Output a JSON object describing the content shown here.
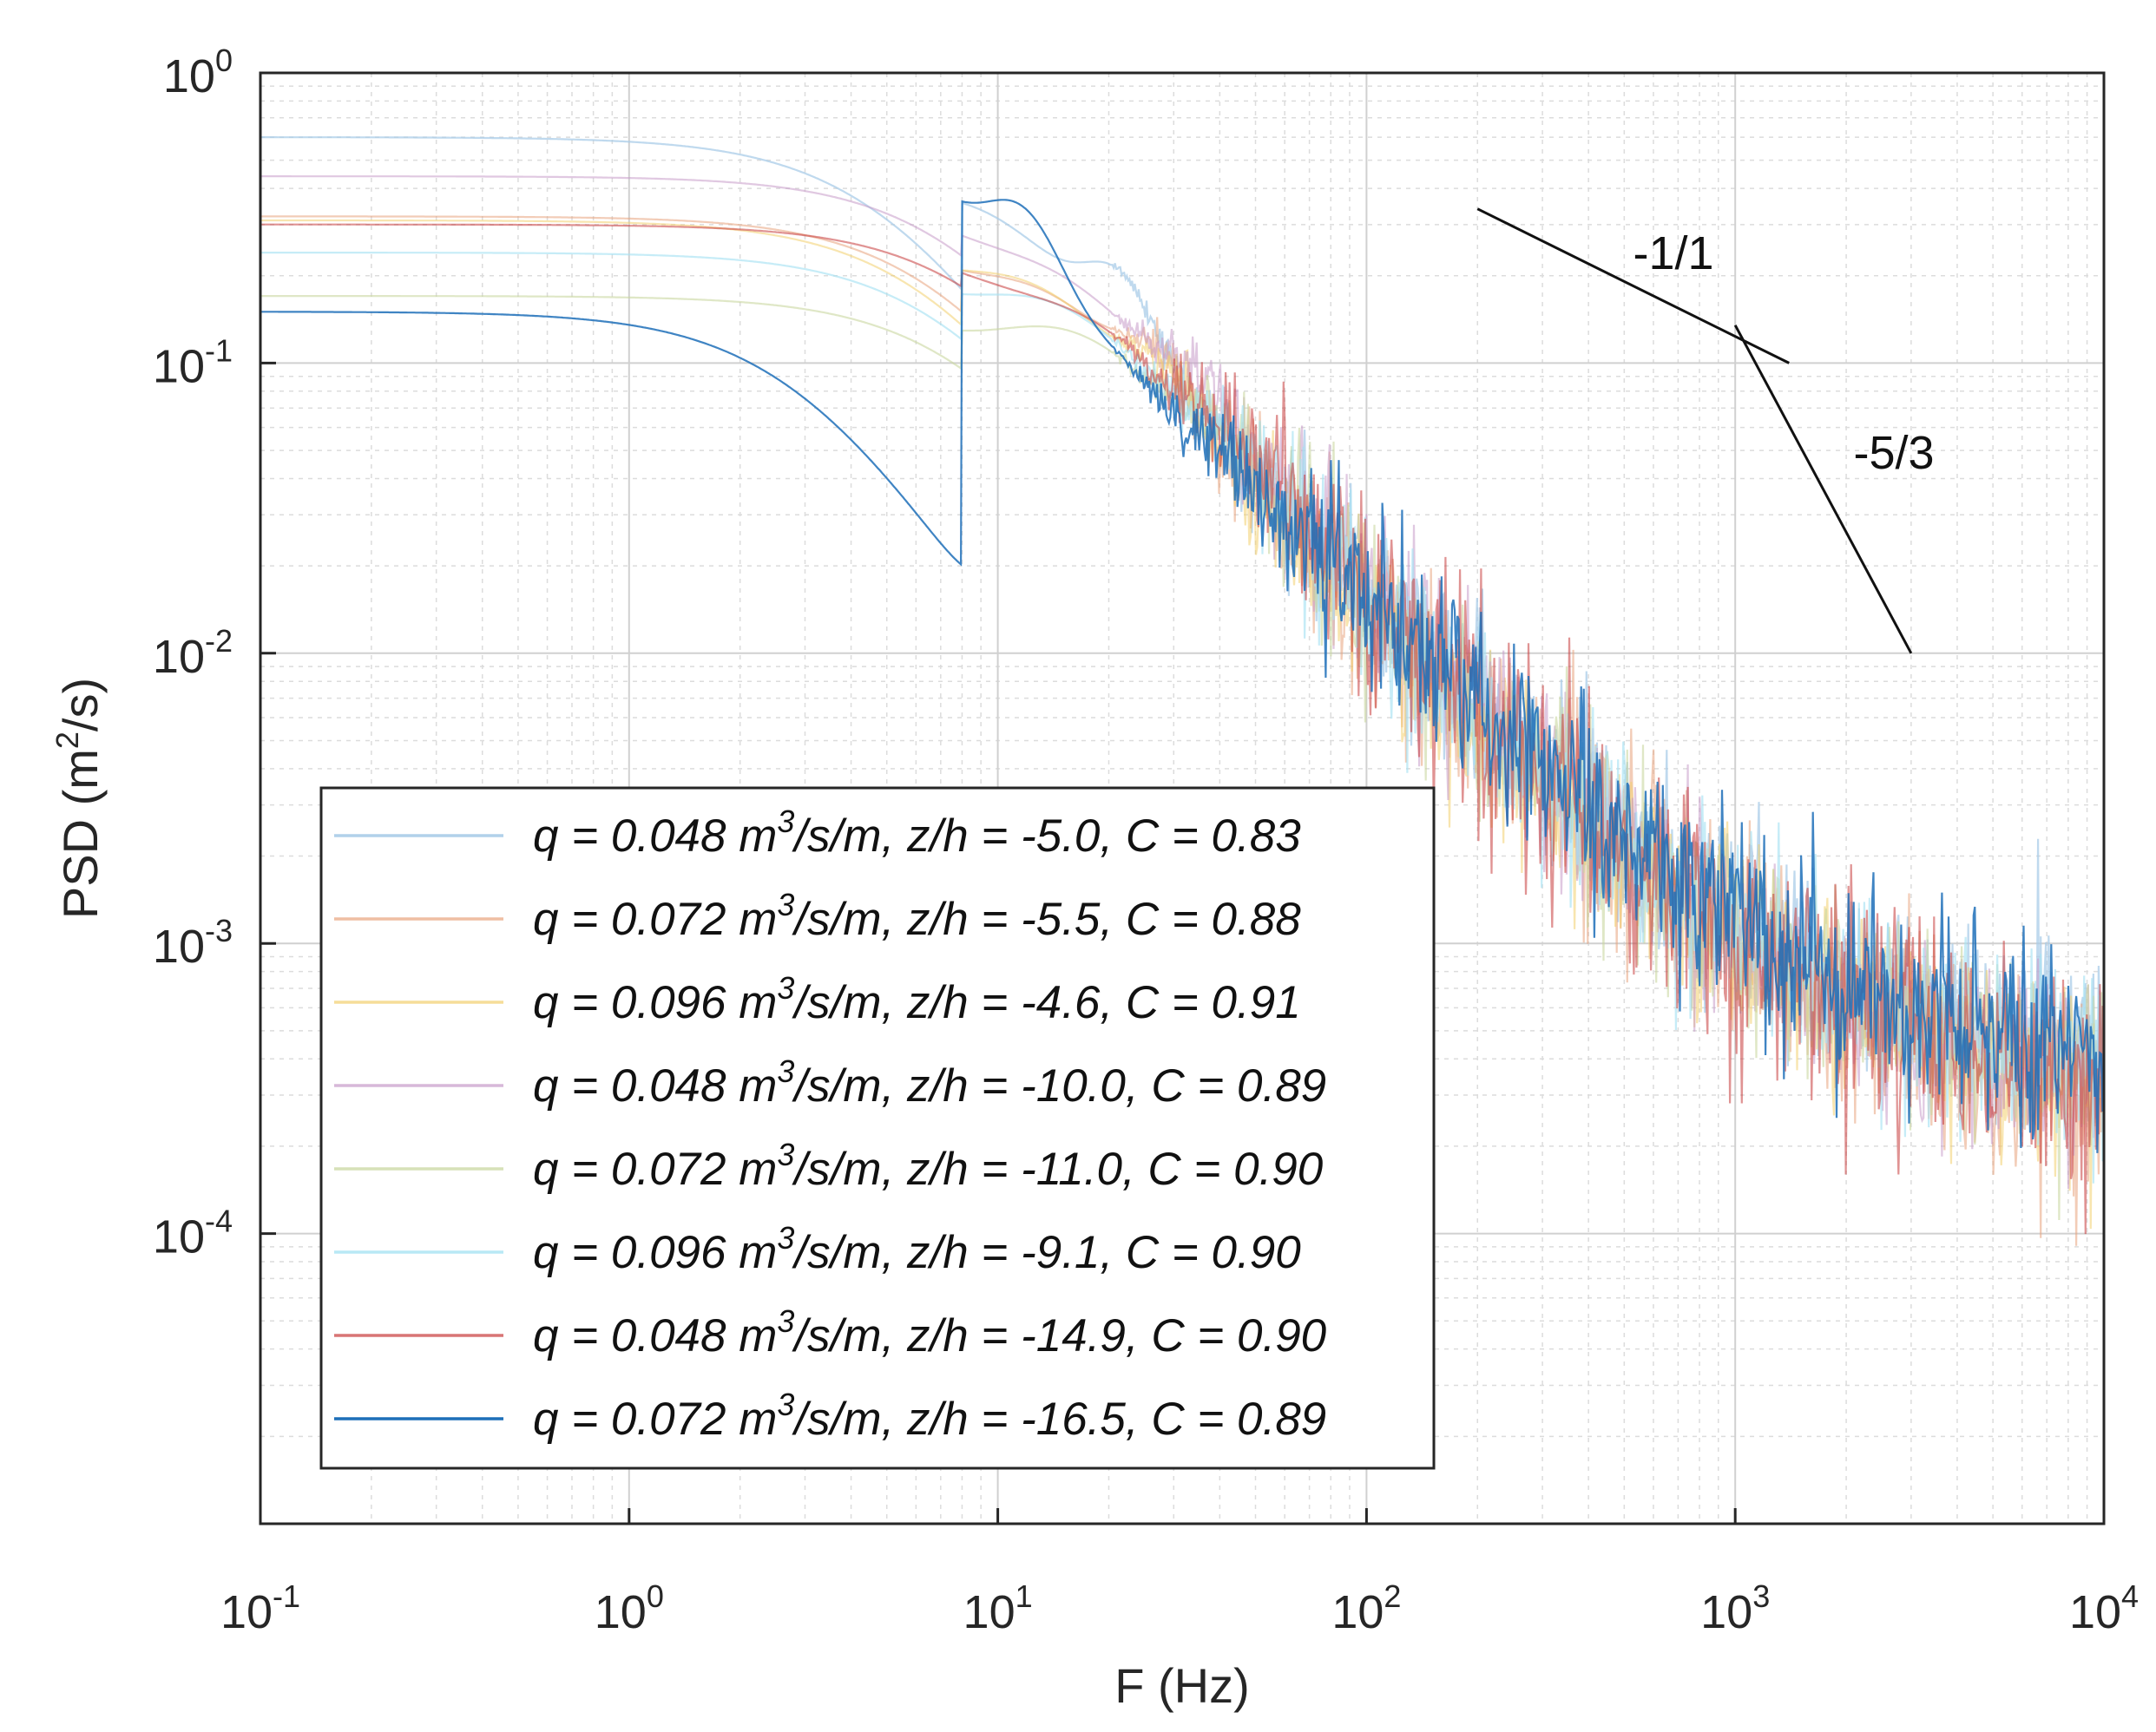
{
  "chart_data": {
    "type": "line",
    "scale": "log-log",
    "xlabel": "F (Hz)",
    "ylabel": "PSD (m²/s)",
    "ylabel_parts": {
      "pre": "PSD (m",
      "sup": "2",
      "post": "/s)"
    },
    "xlim": [
      0.1,
      10000
    ],
    "ylim": [
      1e-05,
      1
    ],
    "grid": true,
    "minor_grid": true,
    "legend_position": "lower-left",
    "x_ticks": [
      {
        "value": 0.1,
        "base": "10",
        "exp": "-1"
      },
      {
        "value": 1,
        "base": "10",
        "exp": "0"
      },
      {
        "value": 10,
        "base": "10",
        "exp": "1"
      },
      {
        "value": 100,
        "base": "10",
        "exp": "2"
      },
      {
        "value": 1000,
        "base": "10",
        "exp": "3"
      },
      {
        "value": 10000,
        "base": "10",
        "exp": "4"
      }
    ],
    "y_ticks": [
      {
        "value": 1,
        "base": "10",
        "exp": "0"
      },
      {
        "value": 0.1,
        "base": "10",
        "exp": "-1"
      },
      {
        "value": 0.01,
        "base": "10",
        "exp": "-2"
      },
      {
        "value": 0.001,
        "base": "10",
        "exp": "-3"
      },
      {
        "value": 0.0001,
        "base": "10",
        "exp": "-4"
      }
    ],
    "reference_lines": [
      {
        "label": "-1/1",
        "slope": -1,
        "points": [
          [
            200,
            0.34
          ],
          [
            1400,
            0.1
          ]
        ]
      },
      {
        "label": "-5/3",
        "slope": -1.6667,
        "points": [
          [
            1000,
            0.135
          ],
          [
            3000,
            0.01
          ]
        ]
      }
    ],
    "series": [
      {
        "name": "q = 0.048 m³/s/m, z/h = -5.0, C = 0.83",
        "q": "0.048",
        "zh": "-5.0",
        "c": "0.83",
        "color": "#a9cce8",
        "opacity": 0.75,
        "plateau": 0.6,
        "knee": 5.2,
        "hump_f": 22,
        "hump_a": 0.6,
        "noise": 0.09,
        "floor": 0.00042,
        "hf_offset": 0.34,
        "seed": 11
      },
      {
        "name": "q = 0.072 m³/s/m, z/h = -5.5, C = 0.88",
        "q": "0.072",
        "zh": "-5.5",
        "c": "0.88",
        "color": "#e8a27c",
        "opacity": 0.55,
        "plateau": 0.32,
        "knee": 7.5,
        "hump_f": 28,
        "hump_a": 0.35,
        "noise": 0.11,
        "floor": 0.00028,
        "hf_offset": 0.1,
        "seed": 23
      },
      {
        "name": "q = 0.096 m³/s/m, z/h = -4.6, C = 0.91",
        "q": "0.096",
        "zh": "-4.6",
        "c": "0.91",
        "color": "#f2cf6e",
        "opacity": 0.55,
        "plateau": 0.31,
        "knee": 7.0,
        "hump_f": 30,
        "hump_a": 0.3,
        "noise": 0.1,
        "floor": 0.0003,
        "hf_offset": 0.14,
        "seed": 37
      },
      {
        "name": "q = 0.048 m³/s/m, z/h = -10.0, C = 0.89",
        "q": "0.048",
        "zh": "-10.0",
        "c": "0.89",
        "color": "#c69ac9",
        "opacity": 0.55,
        "plateau": 0.44,
        "knee": 8.5,
        "hump_f": 35,
        "hump_a": 0.3,
        "noise": 0.1,
        "floor": 0.00033,
        "hf_offset": 0.2,
        "seed": 41
      },
      {
        "name": "q = 0.072 m³/s/m, z/h = -11.0, C = 0.90",
        "q": "0.072",
        "zh": "-11.0",
        "c": "0.90",
        "color": "#c9d7a0",
        "opacity": 0.6,
        "plateau": 0.17,
        "knee": 9.0,
        "hump_f": 40,
        "hump_a": 0.25,
        "noise": 0.1,
        "floor": 0.00034,
        "hf_offset": 0.22,
        "seed": 53
      },
      {
        "name": "q = 0.096 m³/s/m, z/h = -9.1, C = 0.90",
        "q": "0.096",
        "zh": "-9.1",
        "c": "0.90",
        "color": "#a8e2f2",
        "opacity": 0.65,
        "plateau": 0.24,
        "knee": 8.0,
        "hump_f": 45,
        "hump_a": 0.25,
        "noise": 0.1,
        "floor": 0.00036,
        "hf_offset": 0.25,
        "seed": 67
      },
      {
        "name": "q = 0.048 m³/s/m, z/h = -14.9, C = 0.90",
        "q": "0.048",
        "zh": "-14.9",
        "c": "0.90",
        "color": "#c73a3a",
        "opacity": 0.55,
        "plateau": 0.3,
        "knee": 10.0,
        "hump_f": 50,
        "hump_a": 0.25,
        "noise": 0.12,
        "floor": 0.00032,
        "hf_offset": 0.08,
        "seed": 79
      },
      {
        "name": "q = 0.072 m³/s/m, z/h = -16.5, C = 0.89",
        "q": "0.072",
        "zh": "-16.5",
        "c": "0.89",
        "color": "#1d6fb8",
        "opacity": 0.85,
        "plateau": 0.15,
        "knee": 3.0,
        "hump_f": 12,
        "hump_a": 0.55,
        "noise": 0.1,
        "floor": 0.00038,
        "hf_offset": 0.4,
        "seed": 97
      }
    ]
  }
}
